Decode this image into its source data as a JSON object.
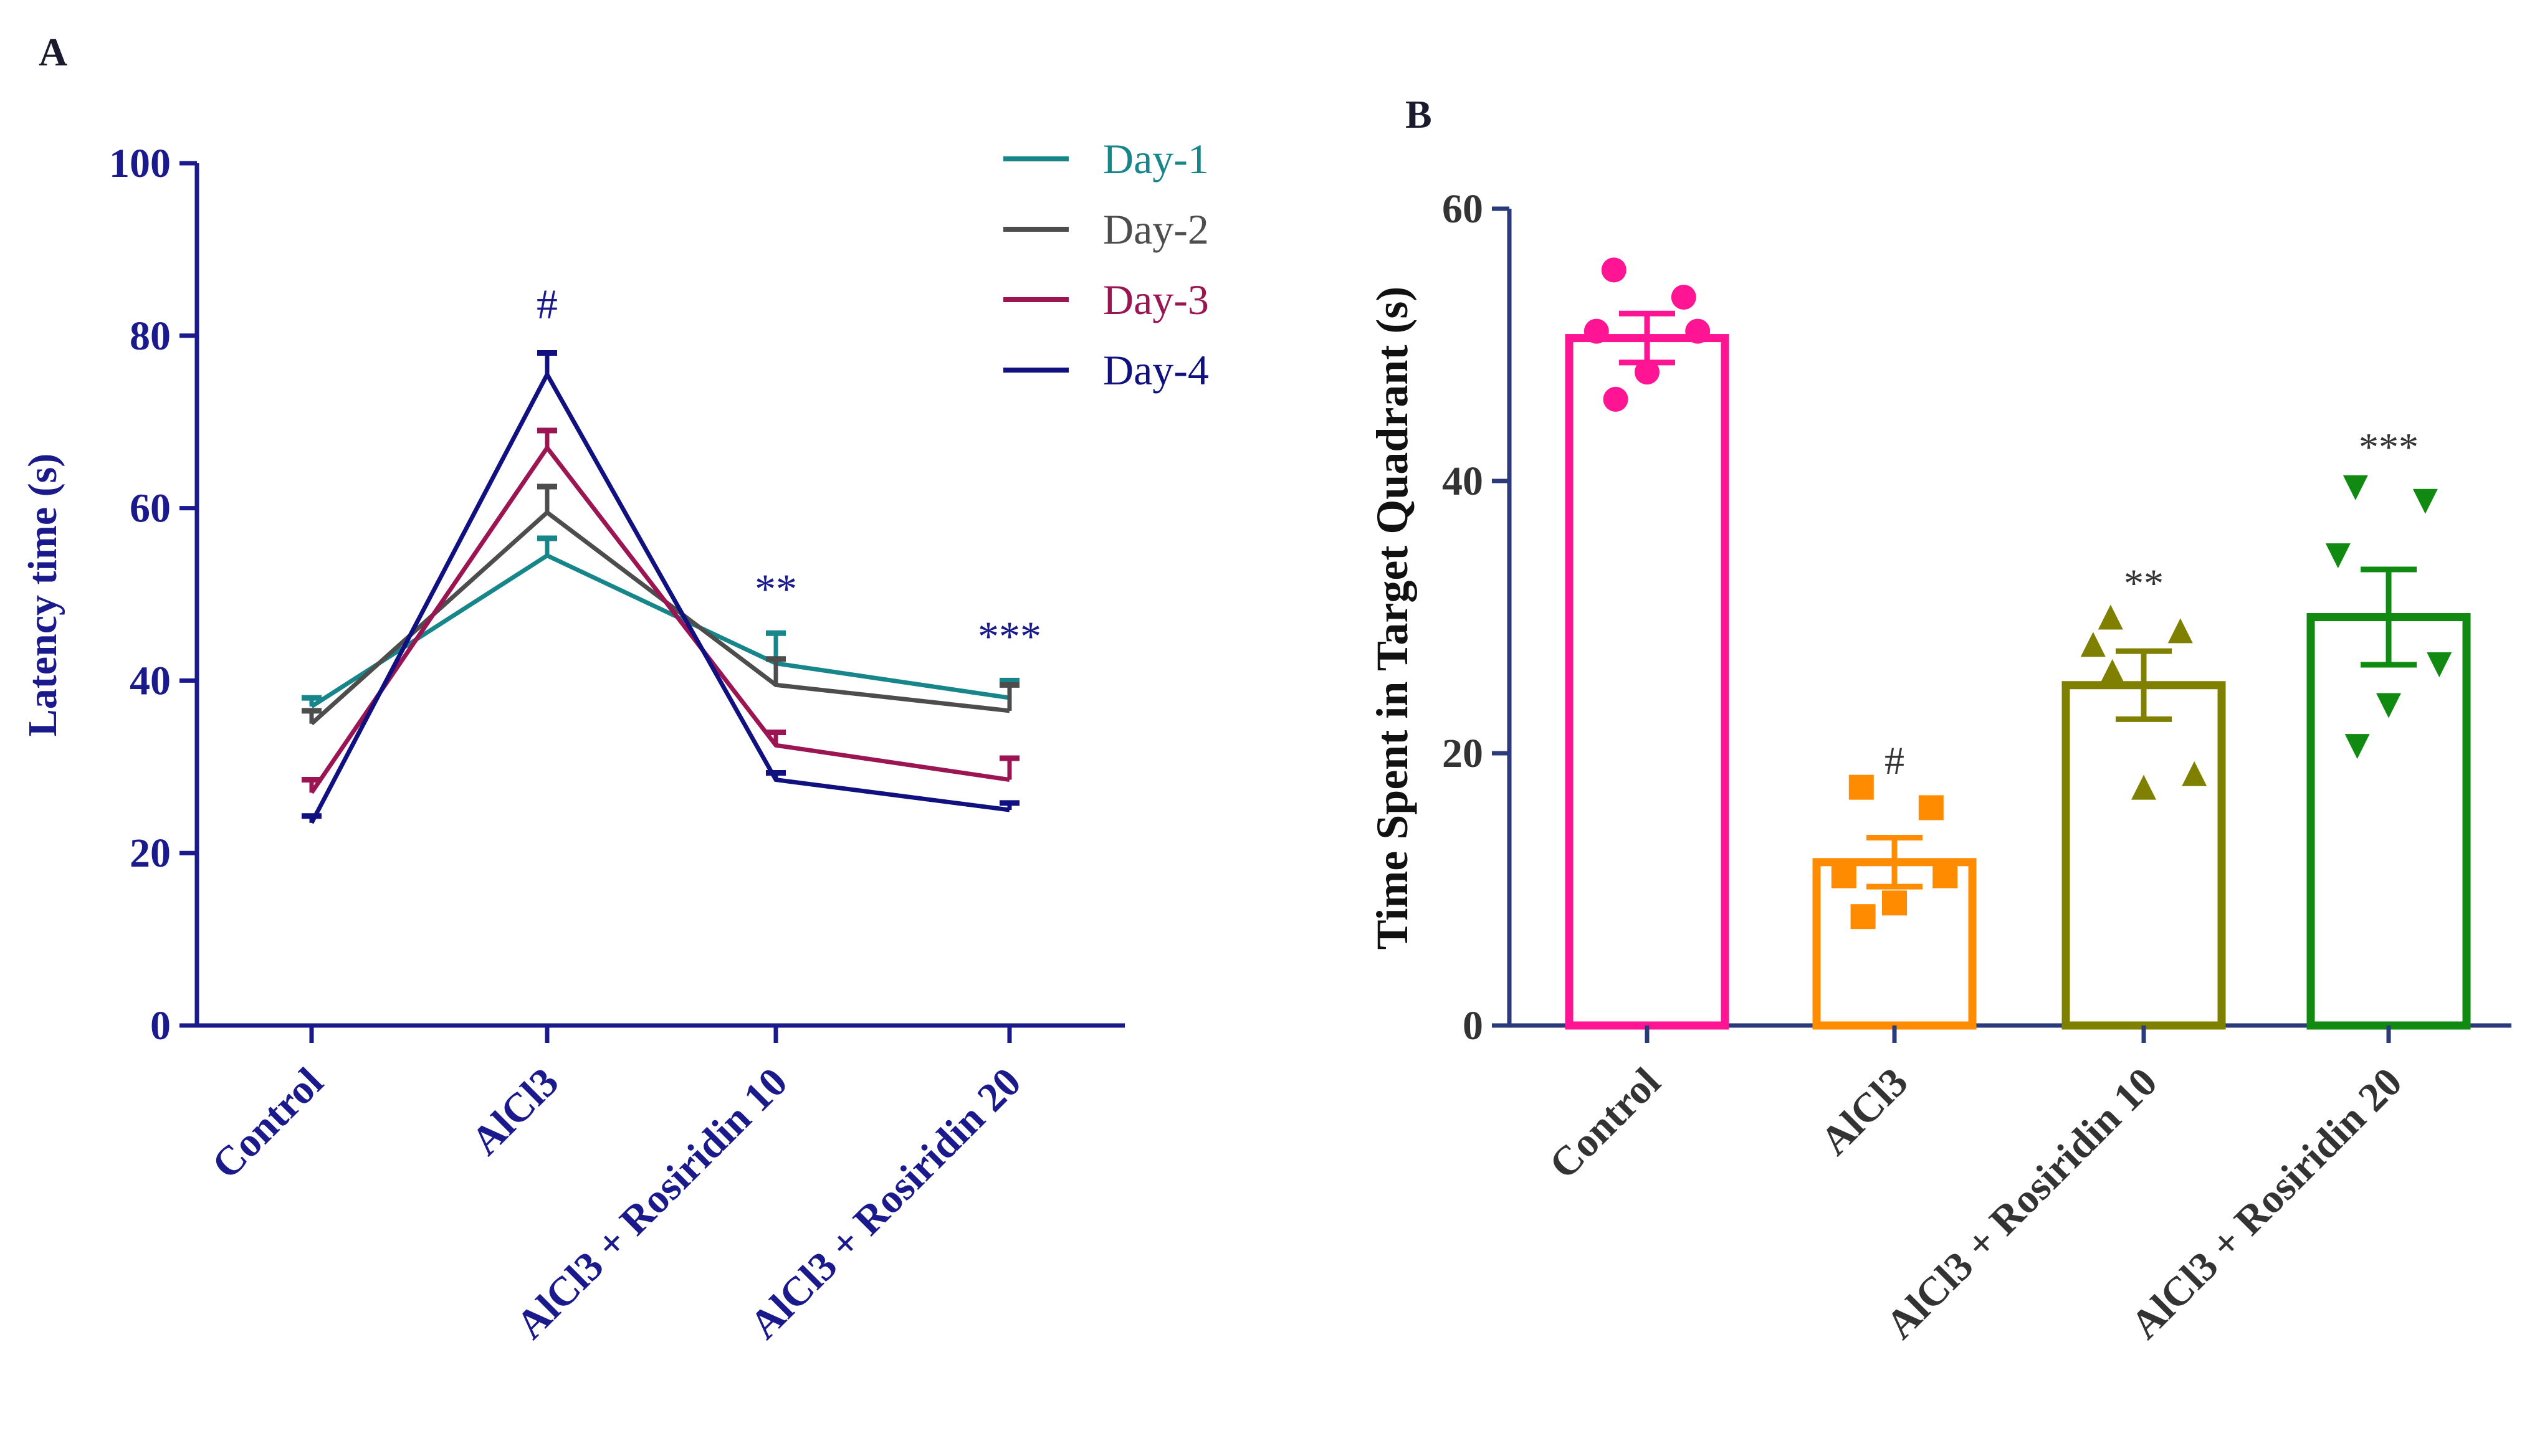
{
  "colors": {
    "axis_a": "#1a1a8c",
    "axis_b": "#2b3a7a",
    "text_b": "#333333",
    "day1": "#17868a",
    "day2": "#4d4d4d",
    "day3": "#9c1553",
    "day4": "#101080",
    "control": "#ff1493",
    "alcl3": "#ff8c00",
    "rosi10": "#808000",
    "rosi20": "#118a11"
  },
  "chart_data": [
    {
      "panel": "A",
      "type": "line",
      "title": "",
      "xlabel": "",
      "ylabel": "Latency time (s)",
      "ylim": [
        0,
        100
      ],
      "yticks": [
        "0",
        "20",
        "40",
        "60",
        "80",
        "100"
      ],
      "categories": [
        "Control",
        "AlCl3",
        "AlCl3 + Rosiridin 10",
        "AlCl3 + Rosiridin 20"
      ],
      "legend_position": "top-right",
      "series": [
        {
          "name": "Day-1",
          "color_key": "day1",
          "values": [
            37,
            54.5,
            42,
            38
          ],
          "errors": [
            1,
            2,
            3.5,
            2
          ]
        },
        {
          "name": "Day-2",
          "color_key": "day2",
          "values": [
            35,
            59.5,
            39.5,
            36.5
          ],
          "errors": [
            1.5,
            3,
            3,
            3
          ]
        },
        {
          "name": "Day-3",
          "color_key": "day3",
          "values": [
            27,
            67,
            32.5,
            28.5
          ],
          "errors": [
            1.5,
            2,
            1.5,
            2.5
          ]
        },
        {
          "name": "Day-4",
          "color_key": "day4",
          "values": [
            23.5,
            75.5,
            28.5,
            25
          ],
          "errors": [
            0.8,
            2.5,
            0.8,
            0.8
          ]
        }
      ],
      "annotations": [
        {
          "text": "#",
          "category": 1,
          "y": 82
        },
        {
          "text": "**",
          "category": 2,
          "y": 49
        },
        {
          "text": "***",
          "category": 3,
          "y": 43.5
        }
      ]
    },
    {
      "panel": "B",
      "type": "bar",
      "title": "",
      "xlabel": "",
      "ylabel": "Time Spent in Target Quadrant (s)",
      "ylim": [
        0,
        60
      ],
      "yticks": [
        "0",
        "20",
        "40",
        "60"
      ],
      "categories": [
        "Control",
        "AlCl3",
        "AlCl3 + Rosiridin 10",
        "AlCl3 + Rosiridin 20"
      ],
      "bars": [
        {
          "name": "Control",
          "color_key": "control",
          "marker": "circle",
          "mean": 50.5,
          "sem": 1.8,
          "points": [
            55.5,
            53.5,
            51,
            51,
            48,
            46
          ]
        },
        {
          "name": "AlCl3",
          "color_key": "alcl3",
          "marker": "square",
          "mean": 12,
          "sem": 1.8,
          "points": [
            17.5,
            16,
            11,
            11,
            9,
            8
          ]
        },
        {
          "name": "AlCl3 + Rosiridin 10",
          "color_key": "rosi10",
          "marker": "triangle-up",
          "mean": 25,
          "sem": 2.5,
          "points": [
            30,
            29,
            28,
            18.5,
            17.5,
            26
          ]
        },
        {
          "name": "AlCl3 + Rosiridin 20",
          "color_key": "rosi20",
          "marker": "triangle-down",
          "mean": 30,
          "sem": 3.5,
          "points": [
            39.5,
            38.5,
            34.5,
            26.5,
            23.5,
            20.5
          ]
        }
      ],
      "annotations": [
        {
          "text": "#",
          "category": 1,
          "y": 18.5
        },
        {
          "text": "**",
          "category": 2,
          "y": 31.5
        },
        {
          "text": "***",
          "category": 3,
          "y": 41.5
        }
      ]
    }
  ],
  "panel_labels": {
    "a": "A",
    "b": "B"
  }
}
